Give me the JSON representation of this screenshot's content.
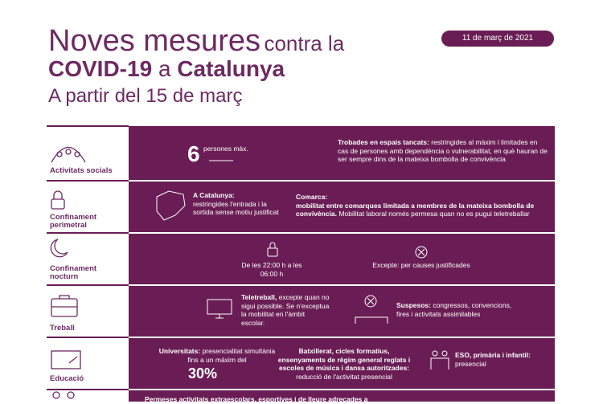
{
  "header": {
    "title_big": "Noves mesures",
    "title_rest": "contra la",
    "title_bold1": "COVID-19",
    "title_mid": "a",
    "title_bold2": "Catalunya",
    "subtitle": "A partir del 15 de març",
    "date": "11 de març de 2021"
  },
  "rows": [
    {
      "label": "Activitats socials",
      "items": [
        {
          "number": "6",
          "text": "persones màx."
        },
        {
          "bold": "Trobades en espais tancats:",
          "text": "restringides al màxim i limitades en cas de persones amb dependència o vulnerabilitat, en què hauran de ser sempre dins de la mateixa bombolla de convivència"
        }
      ]
    },
    {
      "label": "Confinament perimetral",
      "items": [
        {
          "bold": "A Catalunya:",
          "text": "restringides l'entrada i la sortida sense motiu justificat"
        },
        {
          "bold": "Comarca:",
          "bold2": "mobilitat entre comarques limitada a membres de la mateixa bombolla de convivència.",
          "text": "Mobilitat laboral només permesa quan no es pugui teletreballar"
        }
      ]
    },
    {
      "label": "Confinament nocturn",
      "items": [
        {
          "text": "De les 22:00 h a les 06:00 h"
        },
        {
          "text": "Excepte: per causes justificades"
        }
      ]
    },
    {
      "label": "Treball",
      "items": [
        {
          "bold": "Teletreball,",
          "text": "excepte quan no sigui possible. Se n'exceptua la mobilitat en l'àmbit escolar."
        },
        {
          "bold": "Suspesos:",
          "text": "congressos, convencions, fires i activitats assimilables"
        }
      ]
    },
    {
      "label": "Educació",
      "items": [
        {
          "bold": "Universitats:",
          "text": "presencialitat simultània fins a un màxim del",
          "number": "30%"
        },
        {
          "bold": "Batxillerat, cicles formatius, ensenyaments de règim general reglats i escoles de música i dansa autoritzades:",
          "text": "reducció de l'activitat presencial"
        },
        {
          "bold": "ESO, primària i infantil:",
          "text": "presencial"
        }
      ]
    },
    {
      "label": "",
      "items": [
        {
          "bold": "Permeses activitats extraescolars, esportives i de lleure adreçades a"
        }
      ]
    }
  ]
}
